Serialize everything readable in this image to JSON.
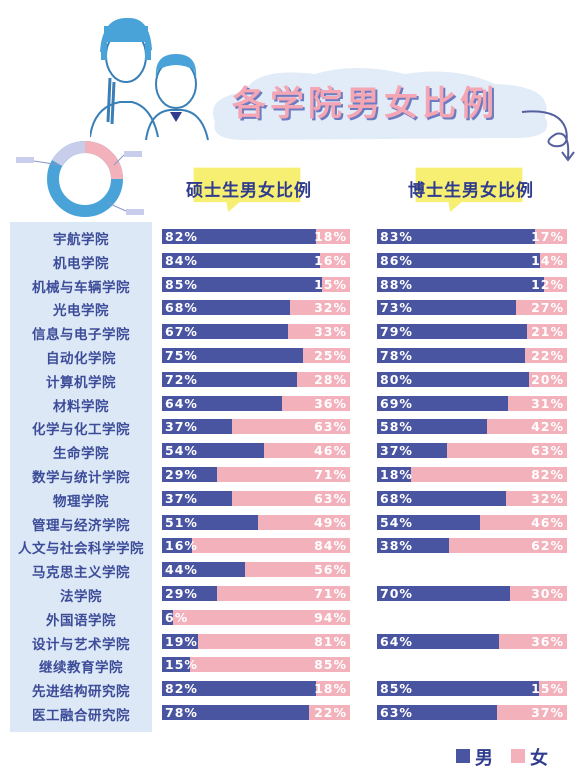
{
  "chart_data": {
    "type": "bar",
    "title": "各学院男女比例",
    "panels": [
      {
        "key": "master",
        "title": "硕士生男女比例"
      },
      {
        "key": "phd",
        "title": "博士生男女比例"
      }
    ],
    "series": [
      {
        "name": "男"
      },
      {
        "name": "女"
      }
    ],
    "colors": {
      "male": "#4a55a2",
      "female": "#f3b1bb",
      "accent_pink": "#f4a6b4",
      "label": "#3d4c99"
    },
    "rows": [
      {
        "college": "宇航学院",
        "master": [
          82,
          18
        ],
        "phd": [
          83,
          17
        ]
      },
      {
        "college": "机电学院",
        "master": [
          84,
          16
        ],
        "phd": [
          86,
          14
        ]
      },
      {
        "college": "机械与车辆学院",
        "master": [
          85,
          15
        ],
        "phd": [
          88,
          12
        ]
      },
      {
        "college": "光电学院",
        "master": [
          68,
          32
        ],
        "phd": [
          73,
          27
        ]
      },
      {
        "college": "信息与电子学院",
        "master": [
          67,
          33
        ],
        "phd": [
          79,
          21
        ]
      },
      {
        "college": "自动化学院",
        "master": [
          75,
          25
        ],
        "phd": [
          78,
          22
        ]
      },
      {
        "college": "计算机学院",
        "master": [
          72,
          28
        ],
        "phd": [
          80,
          20
        ]
      },
      {
        "college": "材料学院",
        "master": [
          64,
          36
        ],
        "phd": [
          69,
          31
        ]
      },
      {
        "college": "化学与化工学院",
        "master": [
          37,
          63
        ],
        "phd": [
          58,
          42
        ]
      },
      {
        "college": "生命学院",
        "master": [
          54,
          46
        ],
        "phd": [
          37,
          63
        ]
      },
      {
        "college": "数学与统计学院",
        "master": [
          29,
          71
        ],
        "phd": [
          18,
          82
        ]
      },
      {
        "college": "物理学院",
        "master": [
          37,
          63
        ],
        "phd": [
          68,
          32
        ]
      },
      {
        "college": "管理与经济学院",
        "master": [
          51,
          49
        ],
        "phd": [
          54,
          46
        ]
      },
      {
        "college": "人文与社会科学学院",
        "master": [
          16,
          84
        ],
        "phd": [
          38,
          62
        ]
      },
      {
        "college": "马克思主义学院",
        "master": [
          44,
          56
        ],
        "phd": null
      },
      {
        "college": "法学院",
        "master": [
          29,
          71
        ],
        "phd": [
          70,
          30
        ]
      },
      {
        "college": "外国语学院",
        "master": [
          6,
          94
        ],
        "phd": null
      },
      {
        "college": "设计与艺术学院",
        "master": [
          19,
          81
        ],
        "phd": [
          64,
          36
        ]
      },
      {
        "college": "继续教育学院",
        "master": [
          15,
          85
        ],
        "phd": null
      },
      {
        "college": "先进结构研究院",
        "master": [
          82,
          18
        ],
        "phd": [
          85,
          15
        ]
      },
      {
        "college": "医工融合研究院",
        "master": [
          78,
          22
        ],
        "phd": [
          63,
          37
        ]
      }
    ],
    "legend": {
      "male": "男",
      "female": "女",
      "placement": "bottom-right"
    }
  }
}
